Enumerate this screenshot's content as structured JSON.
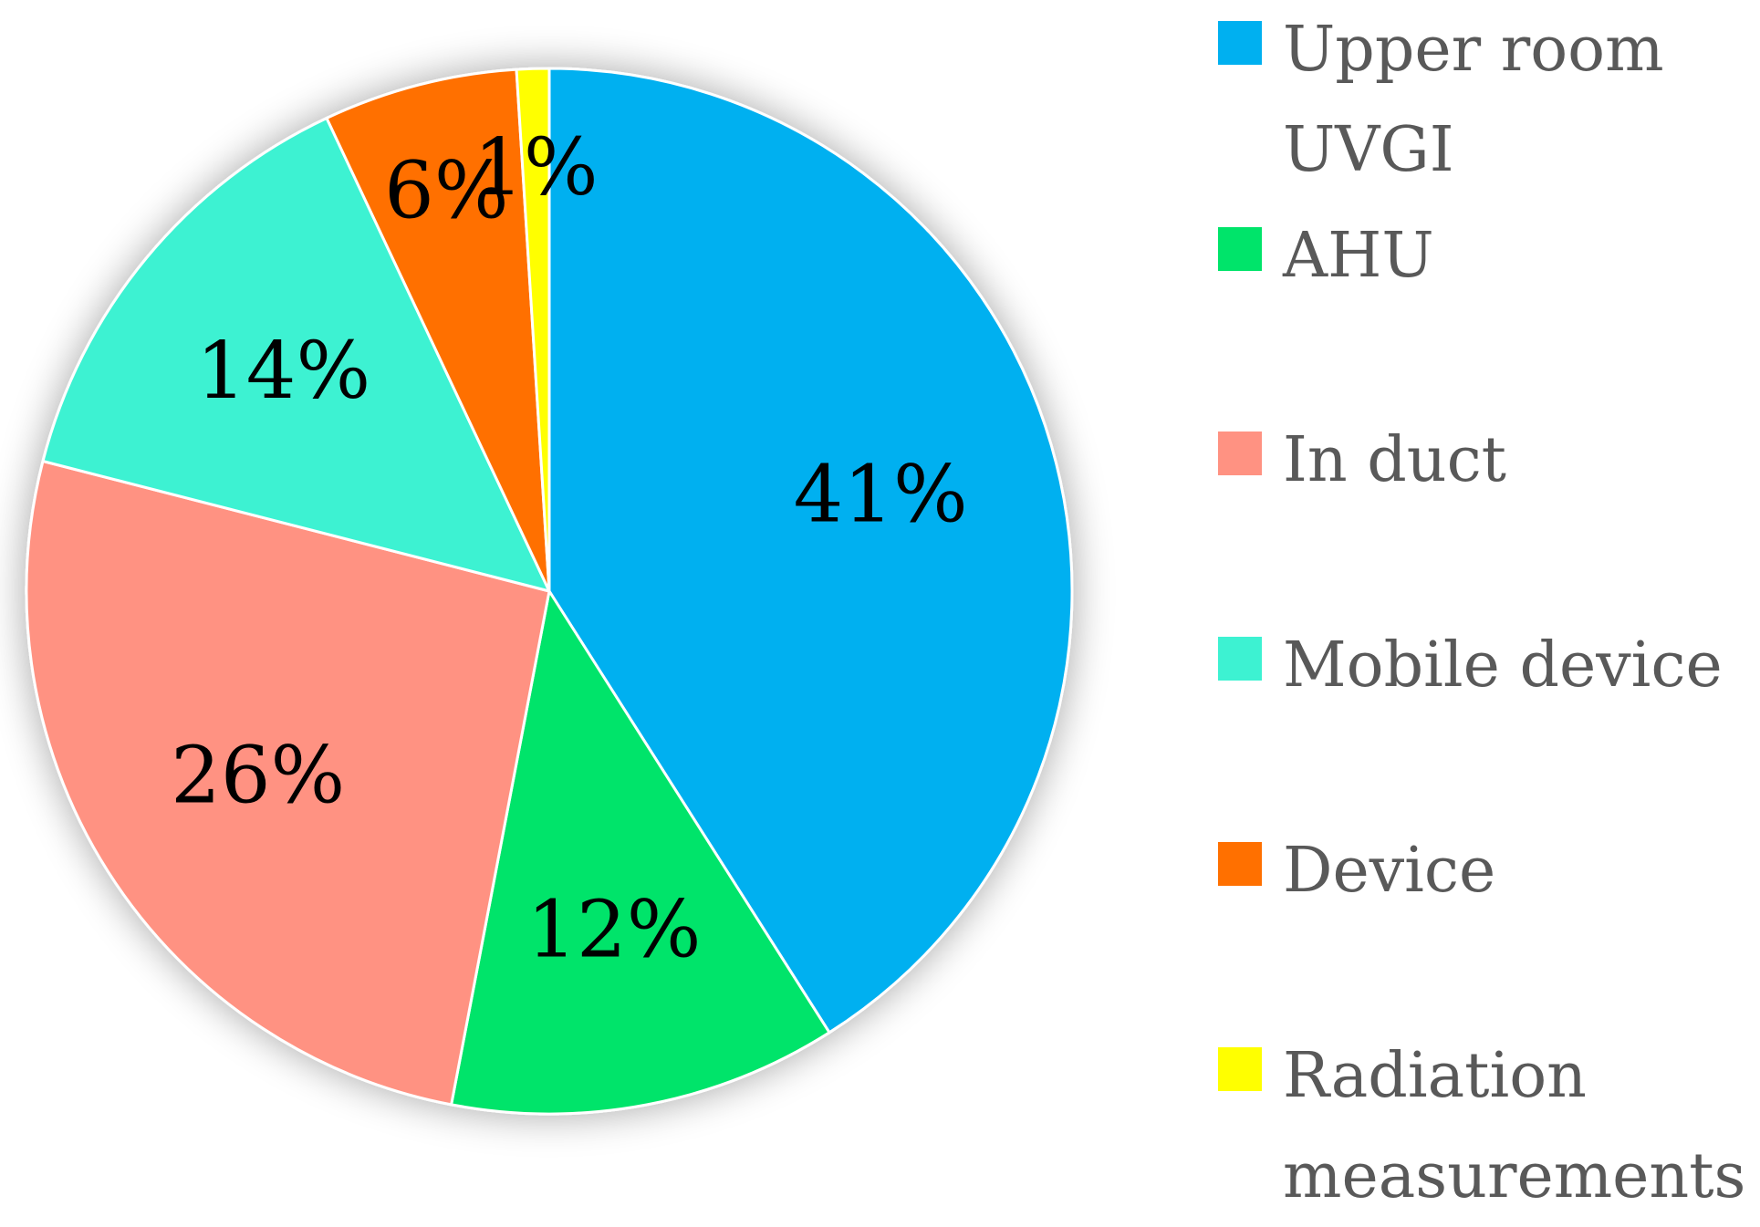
{
  "chart_data": {
    "type": "pie",
    "title": "",
    "legend_position": "right",
    "categories": [
      "Upper room UVGI",
      "AHU",
      "In duct",
      "Mobile device",
      "Device",
      "Radiation measurements"
    ],
    "values": [
      41,
      12,
      26,
      14,
      6,
      1
    ],
    "labels": [
      "41%",
      "12%",
      "26%",
      "14%",
      "6%",
      "1%"
    ],
    "colors": [
      "#00B0F0",
      "#00E46A",
      "#FF9282",
      "#3DF2D2",
      "#FF7000",
      "#FFFF00"
    ]
  },
  "legend": {
    "items": [
      {
        "label": "Upper room\nUVGI",
        "color": "#00B0F0"
      },
      {
        "label": "AHU",
        "color": "#00E46A"
      },
      {
        "label": "In duct",
        "color": "#FF9282"
      },
      {
        "label": "Mobile device",
        "color": "#3DF2D2"
      },
      {
        "label": "Device",
        "color": "#FF7000"
      },
      {
        "label": "Radiation\nmeasurements",
        "color": "#FFFF00"
      }
    ]
  }
}
